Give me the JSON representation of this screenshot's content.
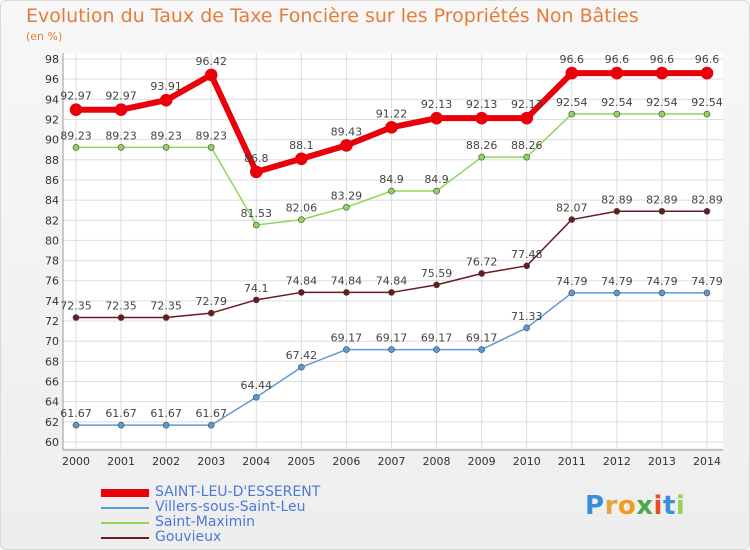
{
  "chart_data": {
    "type": "line",
    "title": "Evolution du Taux de Taxe Foncière sur les Propriétés Non Bâties",
    "unit_label": "(en %)",
    "ylim": [
      60,
      98
    ],
    "y_ticks": [
      "60",
      "62",
      "64",
      "66",
      "68",
      "70",
      "72",
      "74",
      "76",
      "78",
      "80",
      "82",
      "84",
      "86",
      "88",
      "90",
      "92",
      "94",
      "96",
      "98"
    ],
    "categories": [
      "2000",
      "2001",
      "2002",
      "2003",
      "2004",
      "2005",
      "2006",
      "2007",
      "2008",
      "2009",
      "2010",
      "2011",
      "2012",
      "2013",
      "2014"
    ],
    "grid": true,
    "legend_position": "bottom-left",
    "series": [
      {
        "name": "SAINT-LEU-D'ESSERENT",
        "color": "#e8000b",
        "width": 6,
        "values": [
          92.97,
          92.97,
          93.91,
          96.42,
          86.8,
          88.1,
          89.43,
          91.22,
          92.13,
          92.13,
          92.13,
          96.6,
          96.6,
          96.6,
          96.6
        ],
        "labels": [
          "92.97",
          "92.97",
          "93.91",
          "96.42",
          "86.8",
          "88.1",
          "89.43",
          "91.22",
          "92.13",
          "92.13",
          "92.13",
          "96.6",
          "96.6",
          "96.6",
          "96.6"
        ]
      },
      {
        "name": "Villers-sous-Saint-Leu",
        "color": "#5b9bd5",
        "width": 1.5,
        "values": [
          61.67,
          61.67,
          61.67,
          61.67,
          64.44,
          67.42,
          69.17,
          69.17,
          69.17,
          69.17,
          71.33,
          74.79,
          74.79,
          74.79,
          74.79
        ],
        "labels": [
          "61.67",
          "61.67",
          "61.67",
          "61.67",
          "64.44",
          "67.42",
          "69.17",
          "69.17",
          "69.17",
          "69.17",
          "71.33",
          "74.79",
          "74.79",
          "74.79",
          "74.79"
        ]
      },
      {
        "name": "Saint-Maximin",
        "color": "#8fd65a",
        "width": 1.5,
        "values": [
          89.23,
          89.23,
          89.23,
          89.23,
          81.53,
          82.06,
          83.29,
          84.9,
          84.9,
          88.26,
          88.26,
          92.54,
          92.54,
          92.54,
          92.54
        ],
        "labels": [
          "89.23",
          "89.23",
          "89.23",
          "89.23",
          "81.53",
          "82.06",
          "83.29",
          "84.9",
          "84.9",
          "88.26",
          "88.26",
          "92.54",
          "92.54",
          "92.54",
          "92.54"
        ]
      },
      {
        "name": "Gouvieux",
        "color": "#6b1a1f",
        "width": 1.5,
        "values": [
          72.35,
          72.35,
          72.35,
          72.79,
          74.1,
          74.84,
          74.84,
          74.84,
          75.59,
          76.72,
          77.48,
          82.07,
          82.89,
          82.89,
          82.89
        ],
        "labels": [
          "72.35",
          "72.35",
          "72.35",
          "72.79",
          "74.1",
          "74.84",
          "74.84",
          "74.84",
          "75.59",
          "76.72",
          "77.48",
          "82.07",
          "82.89",
          "82.89",
          "82.89"
        ]
      }
    ]
  },
  "brand": {
    "text": "Proxiti",
    "letters": [
      "P",
      "r",
      "o",
      "x",
      "i",
      "t",
      "i"
    ],
    "colors": [
      "#3b8fd8",
      "#e8a23a",
      "#f29b22",
      "#4aa84a",
      "#e84d2b",
      "#3b8fd8",
      "#8fd65a"
    ]
  }
}
